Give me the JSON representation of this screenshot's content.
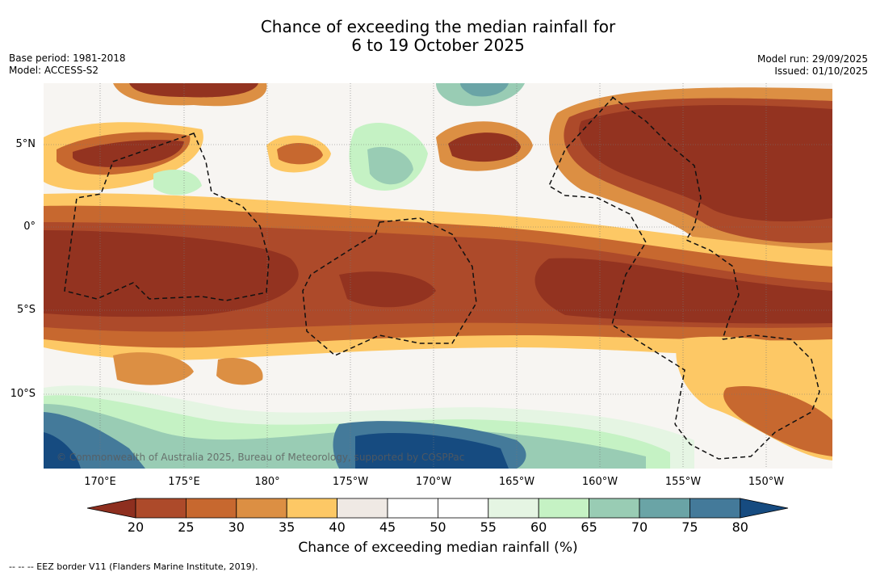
{
  "title": {
    "line1": "Chance of exceeding the median rainfall for",
    "line2": "6 to 19 October 2025"
  },
  "meta_left": {
    "base_period": "Base period: 1981-2018",
    "model": "Model: ACCESS-S2"
  },
  "meta_right": {
    "model_run": "Model run: 29/09/2025",
    "issued": "Issued: 01/10/2025"
  },
  "map": {
    "lat_labels": [
      "5°N",
      "0°",
      "5°S",
      "10°S"
    ],
    "lon_labels": [
      "170°E",
      "175°E",
      "180°",
      "175°W",
      "170°W",
      "165°W",
      "160°W",
      "155°W",
      "150°W"
    ],
    "copyright": "© Commonwealth of Australia 2025, Bureau of Meteorology, supported by COSPPac",
    "ocean_color": "#f7f5f2",
    "dry_color": "#933320",
    "wet_color": "#1d4f82"
  },
  "colorbar": {
    "ticks": [
      "20",
      "25",
      "30",
      "35",
      "40",
      "45",
      "50",
      "55",
      "60",
      "65",
      "70",
      "75",
      "80"
    ],
    "colors": [
      "#8e2f1f",
      "#ad4a2a",
      "#c7682f",
      "#dc8f43",
      "#fdc865",
      "#efe9e4",
      "#ffffff",
      "#ffffff",
      "#e5f5e3",
      "#c5f2c4",
      "#99ccb4",
      "#6aa4a6",
      "#447a9a",
      "#164b80"
    ],
    "label": "Chance of exceeding median rainfall (%)"
  },
  "footnote": "--  --  -- EEZ border V11 (Flanders Marine Institute, 2019)."
}
